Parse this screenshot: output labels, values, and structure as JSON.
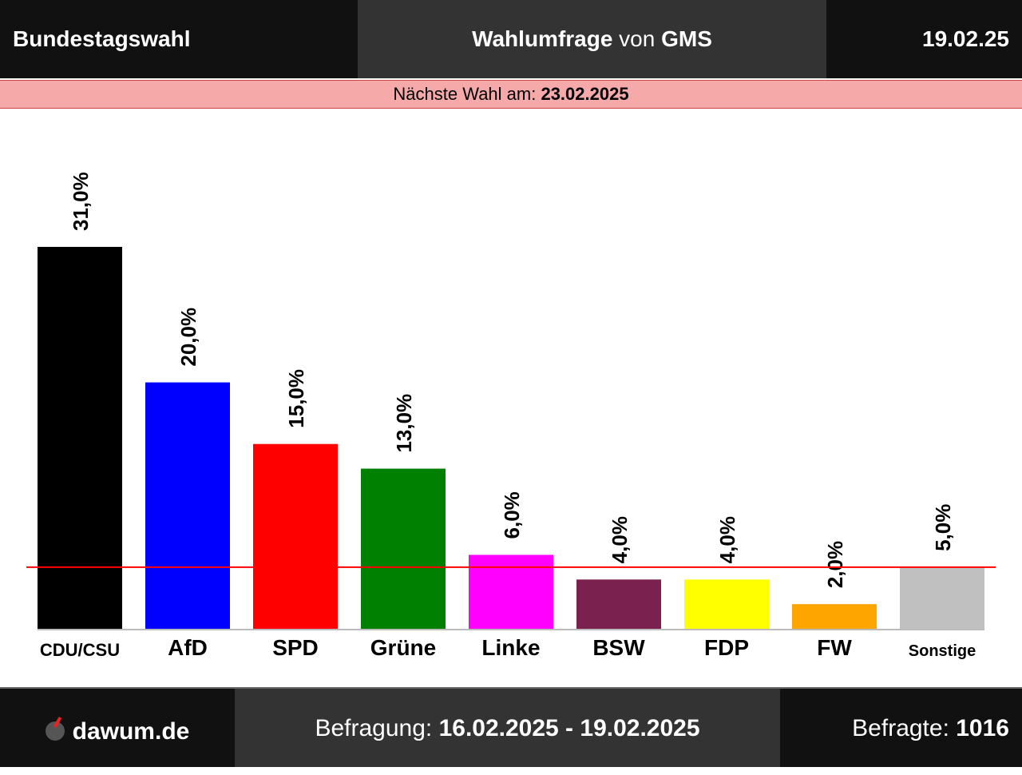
{
  "header": {
    "left": "Bundestagswahl",
    "title_main": "Wahlumfrage",
    "title_connector": " von ",
    "title_pollster": "GMS",
    "date": "19.02.25"
  },
  "election_bar": {
    "label": "Nächste Wahl am: ",
    "date": "23.02.2025"
  },
  "footer": {
    "site": "dawum.de",
    "survey_label": "Befragung: ",
    "survey_period": "16.02.2025 - 19.02.2025",
    "respondents_label": "Befragte: ",
    "respondents_count": "1016"
  },
  "chart_data": {
    "type": "bar",
    "categories": [
      "CDU/CSU",
      "AfD",
      "SPD",
      "Grüne",
      "Linke",
      "BSW",
      "FDP",
      "FW",
      "Sonstige"
    ],
    "values": [
      31.0,
      20.0,
      15.0,
      13.0,
      6.0,
      4.0,
      4.0,
      2.0,
      5.0
    ],
    "value_labels": [
      "31,0%",
      "20,0%",
      "15,0%",
      "13,0%",
      "6,0%",
      "4,0%",
      "4,0%",
      "2,0%",
      "5,0%"
    ],
    "colors": [
      "#000000",
      "#0000ff",
      "#ff0000",
      "#008000",
      "#ff00ff",
      "#7b2150",
      "#ffff00",
      "#ffa500",
      "#c0c0c0"
    ],
    "threshold": 5.0,
    "threshold_color": "#ff0000",
    "ylim": [
      0,
      31
    ],
    "grid": false,
    "legend": "none"
  }
}
